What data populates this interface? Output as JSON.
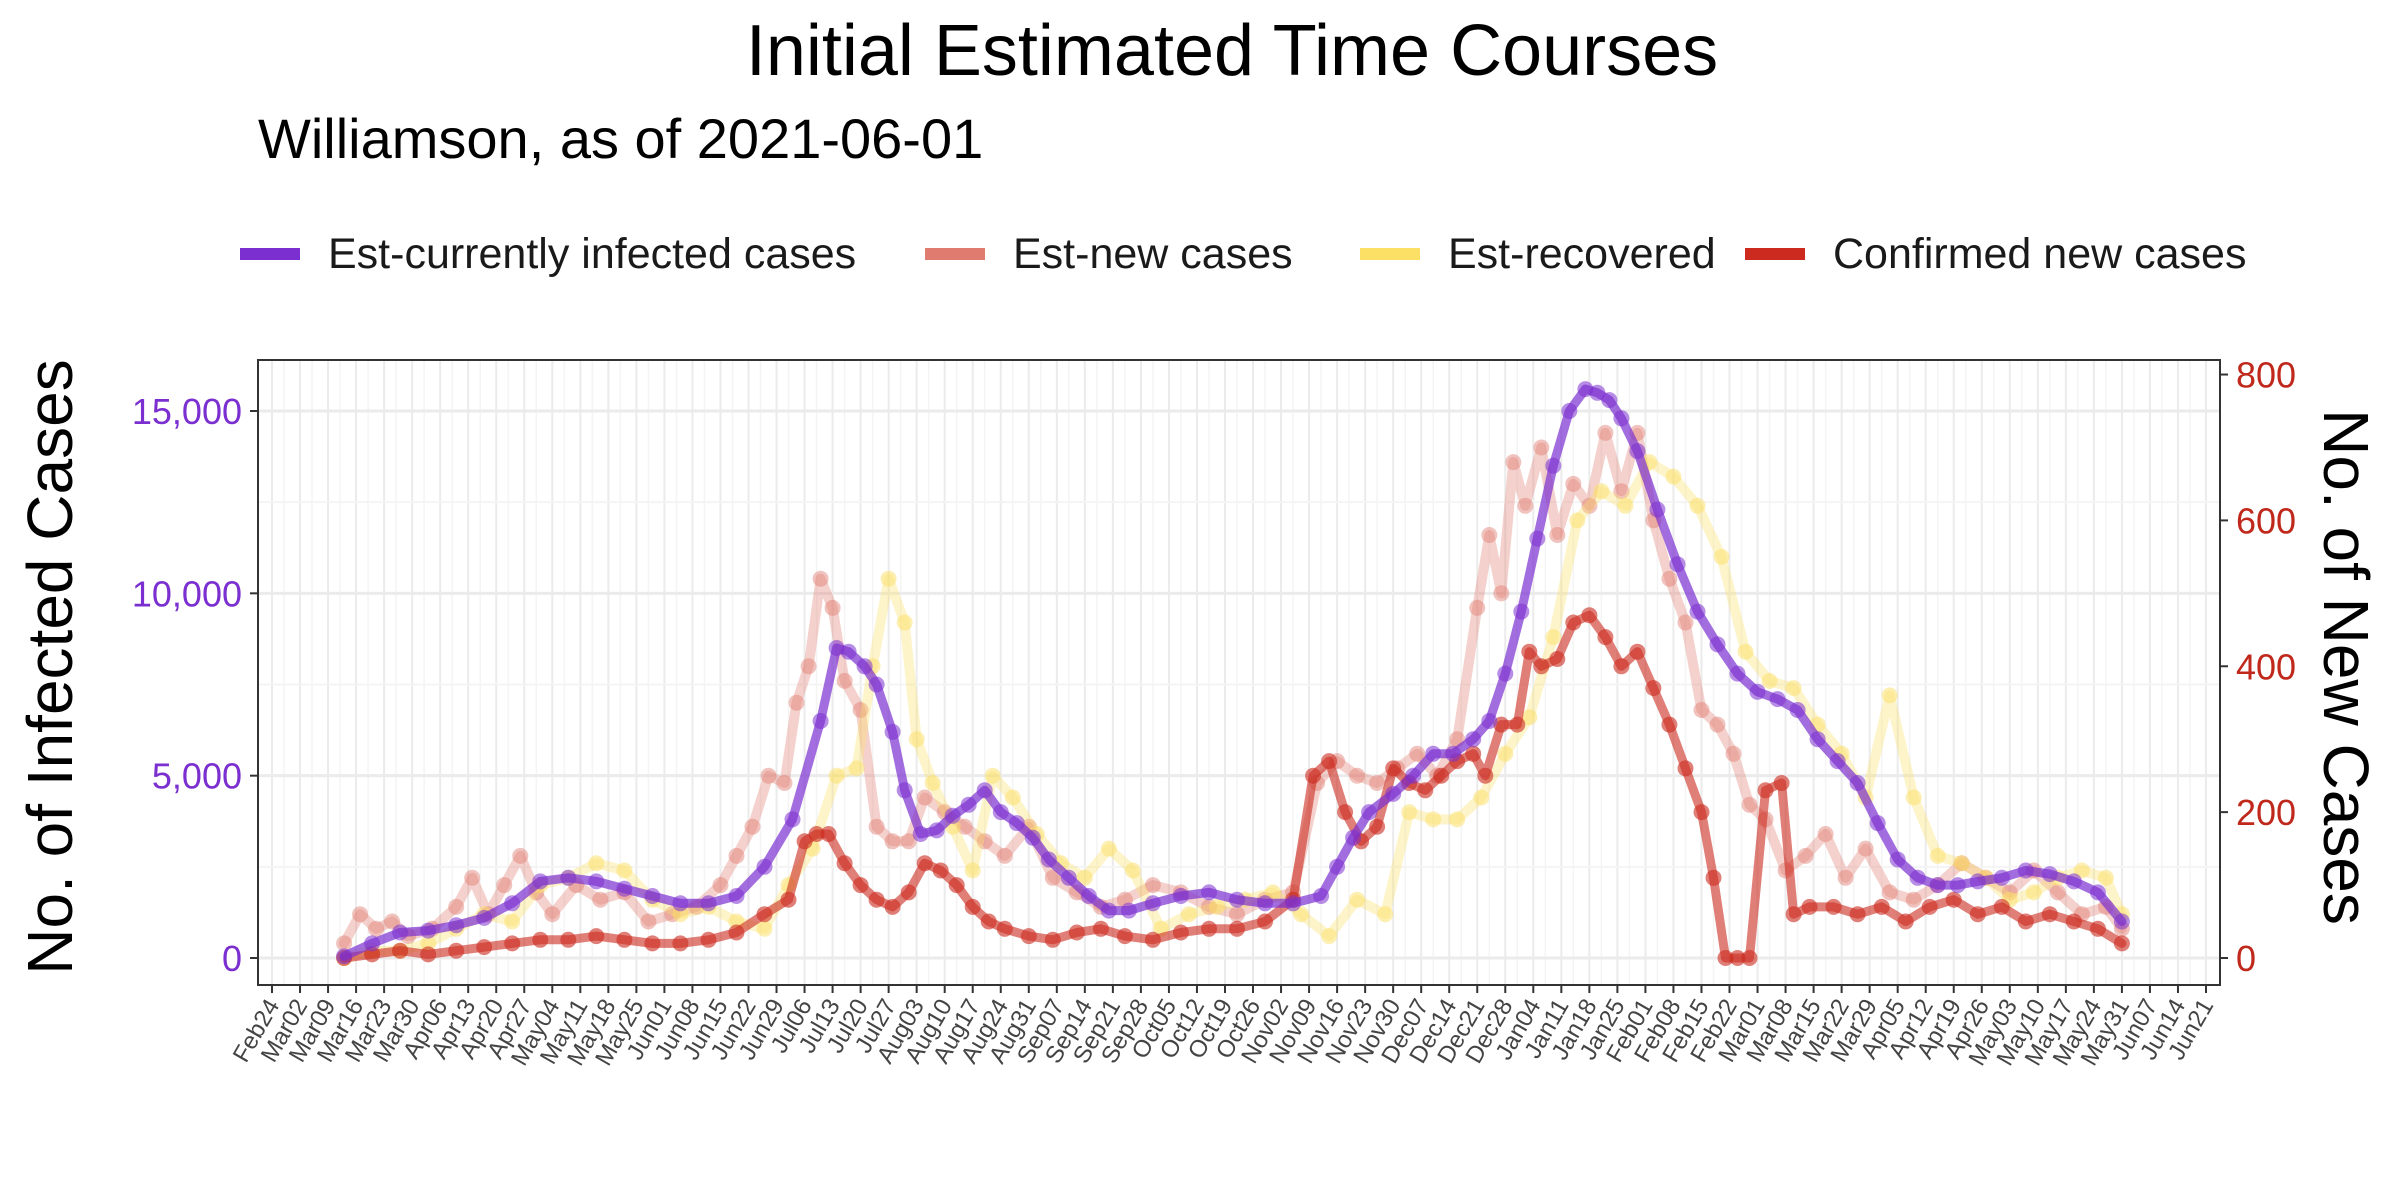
{
  "chart_data": {
    "type": "line",
    "title": "Initial Estimated Time Courses",
    "subtitle": "Williamson, as of 2021-06-01",
    "ylabel_left": "No. of Infected Cases",
    "ylabel_right": "No. of New Cases",
    "ylim_left": [
      0,
      16000
    ],
    "ylim_right": [
      0,
      800
    ],
    "yticks_left": [
      0,
      5000,
      10000,
      15000
    ],
    "yticks_left_labels": [
      "0",
      "5,000",
      "10,000",
      "15,000"
    ],
    "yticks_right": [
      0,
      200,
      400,
      600,
      800
    ],
    "yticks_right_labels": [
      "0",
      "200",
      "400",
      "600",
      "800"
    ],
    "xlim": [
      "2020-02-24",
      "2021-06-21"
    ],
    "x_tick_labels": [
      "Feb24",
      "Mar02",
      "Mar09",
      "Mar16",
      "Mar23",
      "Mar30",
      "Apr06",
      "Apr13",
      "Apr20",
      "Apr27",
      "May04",
      "May11",
      "May18",
      "May25",
      "Jun01",
      "Jun08",
      "Jun15",
      "Jun22",
      "Jun29",
      "Jul06",
      "Jul13",
      "Jul20",
      "Jul27",
      "Aug03",
      "Aug10",
      "Aug17",
      "Aug24",
      "Aug31",
      "Sep07",
      "Sep14",
      "Sep21",
      "Sep28",
      "Oct05",
      "Oct12",
      "Oct19",
      "Oct26",
      "Nov02",
      "Nov09",
      "Nov16",
      "Nov23",
      "Nov30",
      "Dec07",
      "Dec14",
      "Dec21",
      "Dec28",
      "Jan04",
      "Jan11",
      "Jan18",
      "Jan25",
      "Feb01",
      "Feb08",
      "Feb15",
      "Feb22",
      "Mar01",
      "Mar08",
      "Mar15",
      "Mar22",
      "Mar29",
      "Apr05",
      "Apr12",
      "Apr19",
      "Apr26",
      "May03",
      "May10",
      "May17",
      "May24",
      "May31",
      "Jun07",
      "Jun14",
      "Jun21"
    ],
    "grid": true,
    "legend_position": "top",
    "series": [
      {
        "name": "Est-currently infected cases",
        "axis": "left",
        "color": "#7B2FD0",
        "x": [
          "2020-03-13",
          "2020-03-20",
          "2020-03-27",
          "2020-04-03",
          "2020-04-10",
          "2020-04-17",
          "2020-04-24",
          "2020-05-01",
          "2020-05-08",
          "2020-05-15",
          "2020-05-22",
          "2020-05-29",
          "2020-06-05",
          "2020-06-12",
          "2020-06-19",
          "2020-06-26",
          "2020-07-03",
          "2020-07-10",
          "2020-07-14",
          "2020-07-17",
          "2020-07-21",
          "2020-07-24",
          "2020-07-28",
          "2020-07-31",
          "2020-08-04",
          "2020-08-08",
          "2020-08-12",
          "2020-08-16",
          "2020-08-20",
          "2020-08-24",
          "2020-08-28",
          "2020-09-01",
          "2020-09-05",
          "2020-09-10",
          "2020-09-15",
          "2020-09-20",
          "2020-09-25",
          "2020-10-01",
          "2020-10-08",
          "2020-10-15",
          "2020-10-22",
          "2020-10-29",
          "2020-11-05",
          "2020-11-12",
          "2020-11-16",
          "2020-11-20",
          "2020-11-24",
          "2020-11-30",
          "2020-12-05",
          "2020-12-10",
          "2020-12-15",
          "2020-12-20",
          "2020-12-24",
          "2020-12-28",
          "2021-01-01",
          "2021-01-05",
          "2021-01-09",
          "2021-01-13",
          "2021-01-17",
          "2021-01-20",
          "2021-01-23",
          "2021-01-26",
          "2021-01-30",
          "2021-02-04",
          "2021-02-09",
          "2021-02-14",
          "2021-02-19",
          "2021-02-24",
          "2021-03-01",
          "2021-03-06",
          "2021-03-11",
          "2021-03-16",
          "2021-03-21",
          "2021-03-26",
          "2021-03-31",
          "2021-04-05",
          "2021-04-10",
          "2021-04-15",
          "2021-04-20",
          "2021-04-25",
          "2021-05-01",
          "2021-05-07",
          "2021-05-13",
          "2021-05-19",
          "2021-05-25",
          "2021-05-31"
        ],
        "values": [
          50,
          400,
          700,
          750,
          900,
          1100,
          1500,
          2100,
          2200,
          2100,
          1900,
          1700,
          1500,
          1500,
          1700,
          2500,
          3800,
          6500,
          8500,
          8400,
          8000,
          7500,
          6200,
          4600,
          3400,
          3500,
          3900,
          4200,
          4600,
          4000,
          3700,
          3300,
          2700,
          2200,
          1700,
          1300,
          1300,
          1500,
          1700,
          1800,
          1600,
          1500,
          1500,
          1700,
          2500,
          3300,
          4000,
          4500,
          5000,
          5600,
          5600,
          6000,
          6500,
          7800,
          9500,
          11500,
          13500,
          15000,
          15600,
          15500,
          15300,
          14800,
          13900,
          12300,
          10800,
          9500,
          8600,
          7800,
          7300,
          7100,
          6800,
          6000,
          5400,
          4800,
          3700,
          2700,
          2200,
          2000,
          2000,
          2100,
          2200,
          2400,
          2300,
          2100,
          1800,
          1000
        ]
      },
      {
        "name": "Est-new cases",
        "axis": "right",
        "color": "#E07B6F",
        "x": [
          "2020-03-13",
          "2020-03-17",
          "2020-03-21",
          "2020-03-25",
          "2020-03-29",
          "2020-04-04",
          "2020-04-10",
          "2020-04-14",
          "2020-04-18",
          "2020-04-22",
          "2020-04-26",
          "2020-04-30",
          "2020-05-04",
          "2020-05-10",
          "2020-05-16",
          "2020-05-22",
          "2020-05-28",
          "2020-06-03",
          "2020-06-09",
          "2020-06-15",
          "2020-06-19",
          "2020-06-23",
          "2020-06-27",
          "2020-07-01",
          "2020-07-04",
          "2020-07-07",
          "2020-07-10",
          "2020-07-13",
          "2020-07-16",
          "2020-07-20",
          "2020-07-24",
          "2020-07-28",
          "2020-08-01",
          "2020-08-05",
          "2020-08-10",
          "2020-08-15",
          "2020-08-20",
          "2020-08-25",
          "2020-08-31",
          "2020-09-06",
          "2020-09-12",
          "2020-09-18",
          "2020-09-24",
          "2020-10-01",
          "2020-10-08",
          "2020-10-15",
          "2020-10-22",
          "2020-10-29",
          "2020-11-05",
          "2020-11-11",
          "2020-11-16",
          "2020-11-21",
          "2020-11-26",
          "2020-12-01",
          "2020-12-06",
          "2020-12-11",
          "2020-12-16",
          "2020-12-21",
          "2020-12-24",
          "2020-12-27",
          "2020-12-30",
          "2021-01-02",
          "2021-01-06",
          "2021-01-10",
          "2021-01-14",
          "2021-01-18",
          "2021-01-22",
          "2021-01-26",
          "2021-01-30",
          "2021-02-03",
          "2021-02-07",
          "2021-02-11",
          "2021-02-15",
          "2021-02-19",
          "2021-02-23",
          "2021-02-27",
          "2021-03-03",
          "2021-03-08",
          "2021-03-13",
          "2021-03-18",
          "2021-03-23",
          "2021-03-28",
          "2021-04-03",
          "2021-04-09",
          "2021-04-15",
          "2021-04-21",
          "2021-04-27",
          "2021-05-03",
          "2021-05-09",
          "2021-05-15",
          "2021-05-21",
          "2021-05-27",
          "2021-05-31"
        ],
        "values": [
          20,
          60,
          40,
          50,
          30,
          40,
          70,
          110,
          60,
          100,
          140,
          90,
          60,
          100,
          80,
          90,
          50,
          60,
          70,
          100,
          140,
          180,
          250,
          240,
          350,
          400,
          520,
          480,
          380,
          340,
          180,
          160,
          160,
          220,
          200,
          180,
          160,
          140,
          180,
          110,
          90,
          70,
          80,
          100,
          90,
          70,
          60,
          80,
          90,
          240,
          270,
          250,
          240,
          260,
          280,
          250,
          300,
          480,
          580,
          500,
          680,
          620,
          700,
          580,
          650,
          620,
          720,
          640,
          720,
          600,
          520,
          460,
          340,
          320,
          280,
          210,
          190,
          120,
          140,
          170,
          110,
          150,
          90,
          80,
          100,
          130,
          110,
          90,
          120,
          90,
          60,
          70,
          40
        ]
      },
      {
        "name": "Est-recovered",
        "axis": "right",
        "color": "#FCE066",
        "x": [
          "2020-03-13",
          "2020-03-20",
          "2020-03-27",
          "2020-04-03",
          "2020-04-10",
          "2020-04-17",
          "2020-04-24",
          "2020-05-01",
          "2020-05-08",
          "2020-05-15",
          "2020-05-22",
          "2020-05-29",
          "2020-06-05",
          "2020-06-12",
          "2020-06-19",
          "2020-06-26",
          "2020-07-02",
          "2020-07-08",
          "2020-07-14",
          "2020-07-19",
          "2020-07-23",
          "2020-07-27",
          "2020-07-31",
          "2020-08-03",
          "2020-08-07",
          "2020-08-12",
          "2020-08-17",
          "2020-08-22",
          "2020-08-27",
          "2020-09-02",
          "2020-09-08",
          "2020-09-14",
          "2020-09-20",
          "2020-09-26",
          "2020-10-03",
          "2020-10-10",
          "2020-10-17",
          "2020-10-24",
          "2020-10-31",
          "2020-11-07",
          "2020-11-14",
          "2020-11-21",
          "2020-11-28",
          "2020-12-04",
          "2020-12-10",
          "2020-12-16",
          "2020-12-22",
          "2020-12-28",
          "2021-01-03",
          "2021-01-09",
          "2021-01-15",
          "2021-01-21",
          "2021-01-27",
          "2021-02-02",
          "2021-02-08",
          "2021-02-14",
          "2021-02-20",
          "2021-02-26",
          "2021-03-04",
          "2021-03-10",
          "2021-03-16",
          "2021-03-22",
          "2021-03-28",
          "2021-04-03",
          "2021-04-09",
          "2021-04-15",
          "2021-04-21",
          "2021-04-27",
          "2021-05-03",
          "2021-05-09",
          "2021-05-15",
          "2021-05-21",
          "2021-05-27",
          "2021-05-31"
        ],
        "values": [
          0,
          10,
          10,
          20,
          40,
          60,
          50,
          100,
          110,
          130,
          120,
          80,
          60,
          70,
          50,
          40,
          100,
          150,
          250,
          260,
          400,
          520,
          460,
          300,
          240,
          180,
          120,
          250,
          220,
          170,
          130,
          110,
          150,
          120,
          40,
          60,
          70,
          80,
          90,
          60,
          30,
          80,
          60,
          200,
          190,
          190,
          220,
          280,
          330,
          440,
          600,
          640,
          620,
          680,
          660,
          620,
          550,
          420,
          380,
          370,
          320,
          280,
          220,
          360,
          220,
          140,
          130,
          110,
          80,
          90,
          110,
          120,
          110,
          60
        ]
      },
      {
        "name": "Confirmed new cases",
        "axis": "right",
        "color": "#CC2A1E",
        "x": [
          "2020-03-13",
          "2020-03-20",
          "2020-03-27",
          "2020-04-03",
          "2020-04-10",
          "2020-04-17",
          "2020-04-24",
          "2020-05-01",
          "2020-05-08",
          "2020-05-15",
          "2020-05-22",
          "2020-05-29",
          "2020-06-05",
          "2020-06-12",
          "2020-06-19",
          "2020-06-26",
          "2020-07-02",
          "2020-07-06",
          "2020-07-09",
          "2020-07-12",
          "2020-07-16",
          "2020-07-20",
          "2020-07-24",
          "2020-07-28",
          "2020-08-01",
          "2020-08-05",
          "2020-08-09",
          "2020-08-13",
          "2020-08-17",
          "2020-08-21",
          "2020-08-25",
          "2020-08-31",
          "2020-09-06",
          "2020-09-12",
          "2020-09-18",
          "2020-09-24",
          "2020-10-01",
          "2020-10-08",
          "2020-10-15",
          "2020-10-22",
          "2020-10-29",
          "2020-11-05",
          "2020-11-10",
          "2020-11-14",
          "2020-11-18",
          "2020-11-22",
          "2020-11-26",
          "2020-11-30",
          "2020-12-04",
          "2020-12-08",
          "2020-12-12",
          "2020-12-16",
          "2020-12-20",
          "2020-12-23",
          "2020-12-27",
          "2020-12-31",
          "2021-01-03",
          "2021-01-06",
          "2021-01-10",
          "2021-01-14",
          "2021-01-18",
          "2021-01-22",
          "2021-01-26",
          "2021-01-30",
          "2021-02-03",
          "2021-02-07",
          "2021-02-11",
          "2021-02-15",
          "2021-02-18",
          "2021-02-21",
          "2021-02-24",
          "2021-02-27",
          "2021-03-03",
          "2021-03-07",
          "2021-03-10",
          "2021-03-14",
          "2021-03-20",
          "2021-03-26",
          "2021-04-01",
          "2021-04-07",
          "2021-04-13",
          "2021-04-19",
          "2021-04-25",
          "2021-05-01",
          "2021-05-07",
          "2021-05-13",
          "2021-05-19",
          "2021-05-25",
          "2021-05-31"
        ],
        "values": [
          0,
          5,
          10,
          5,
          10,
          15,
          20,
          25,
          25,
          30,
          25,
          20,
          20,
          25,
          35,
          60,
          80,
          160,
          170,
          170,
          130,
          100,
          80,
          70,
          90,
          130,
          120,
          100,
          70,
          50,
          40,
          30,
          25,
          35,
          40,
          30,
          25,
          35,
          40,
          40,
          50,
          80,
          250,
          270,
          200,
          160,
          180,
          260,
          240,
          230,
          250,
          270,
          280,
          250,
          320,
          320,
          420,
          400,
          410,
          460,
          470,
          440,
          400,
          420,
          370,
          320,
          260,
          200,
          110,
          0,
          0,
          0,
          230,
          240,
          60,
          70,
          70,
          60,
          70,
          50,
          70,
          80,
          60,
          70,
          50,
          60,
          50,
          40,
          20
        ]
      }
    ]
  }
}
